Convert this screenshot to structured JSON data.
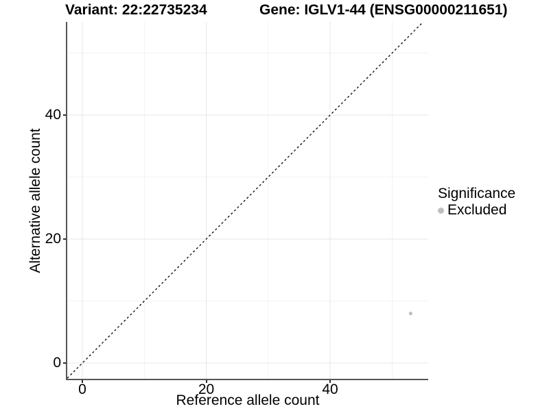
{
  "chart_data": {
    "type": "scatter",
    "title_left": "Variant: 22:22735234",
    "title_right": "Gene: IGLV1-44 (ENSG00000211651)",
    "xlabel": "Reference allele count",
    "ylabel": "Alternative allele count",
    "xlim": [
      -2.44,
      55.84
    ],
    "ylim": [
      -2.54,
      55.03
    ],
    "x_major_ticks": [
      0,
      20,
      40
    ],
    "y_major_ticks": [
      0,
      20,
      40
    ],
    "x_minor_ticks": [
      10,
      30,
      50
    ],
    "y_minor_ticks": [
      10,
      30,
      50
    ],
    "grid": "on",
    "legend_position": "right",
    "reference_line": {
      "type": "identity",
      "slope": 1,
      "intercept": 0,
      "style": "dashed",
      "color": "#000000"
    },
    "series": [
      {
        "name": "Excluded",
        "color": "#bebebe",
        "points": [
          {
            "x": 53,
            "y": 8
          }
        ]
      }
    ],
    "legend": {
      "title": "Significance",
      "items": [
        {
          "label": "Excluded",
          "color": "#bebebe",
          "marker": "circle"
        }
      ]
    },
    "colors": {
      "grid_major": "#e7e7e7",
      "grid_minor": "#f3f3f3",
      "axis_line": "#555555",
      "tick_mark": "#2b2b2b",
      "text": "#000000"
    }
  }
}
